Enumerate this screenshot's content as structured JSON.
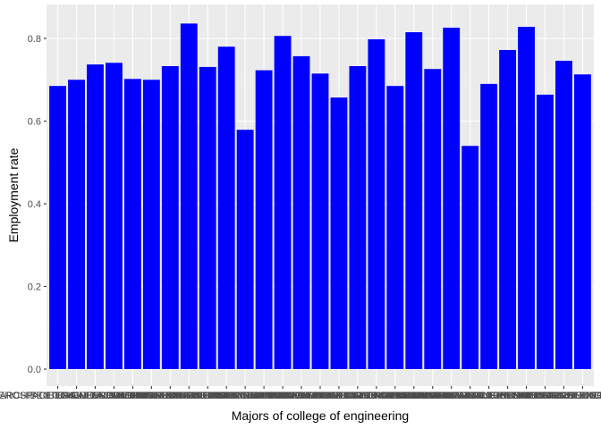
{
  "chart_data": {
    "type": "bar",
    "title": "",
    "xlabel": "Majors of college of engineering",
    "ylabel": "Employment rate",
    "ylim": [
      0,
      0.85
    ],
    "yticks": [
      "0.0",
      "0.2",
      "0.4",
      "0.6",
      "0.8"
    ],
    "ytick_values": [
      0.0,
      0.2,
      0.4,
      0.6,
      0.8
    ],
    "grid": true,
    "legend": "none",
    "bar_color": "#0000ff",
    "panel_color": "#ebebeb",
    "categories": [
      "AEROSPACE ENGINEERING",
      "ARCHITECTURAL ENGINEERING",
      "BIOLOGICAL ENGINEERING",
      "BIOMEDICAL ENGINEERING",
      "CHEMICAL ENGINEERING",
      "CIVIL ENGINEERING",
      "COMPUTER ENGINEERING",
      "ELECTRICAL ENGINEERING",
      "ELECTRICAL ENGINEERING TECHNOLOGY",
      "ENGINEERING AND INDUSTRIAL MANAGEMENT",
      "ENGINEERING MECHANICS PHYSICS AND SCIENCE",
      "ENGINEERING TECHNOLOGIES",
      "ENVIRONMENTAL ENGINEERING",
      "GENERAL ENGINEERING",
      "GEOLOGICAL AND GEOPHYSICAL ENGINEERING",
      "INDUSTRIAL AND MANUFACTURING ENGINEERING",
      "INDUSTRIAL PRODUCTION TECHNOLOGIES",
      "MATERIALS ENGINEERING AND MATERIALS SCIENCE",
      "MATERIALS SCIENCE",
      "MECHANICAL ENGINEERING",
      "MECHANICAL ENGINEERING RELATED TECHNOLOGIES",
      "METALLURGICAL ENGINEERING",
      "MINING AND MINERAL ENGINEERING",
      "MISCELLANEOUS ENGINEERING",
      "MISCELLANEOUS ENGINEERING TECHNOLOGIES",
      "NAVAL ARCHITECTURE AND MARINE ENGINEERING",
      "NUCLEAR ENGINEERING",
      "PETROLEUM ENGINEERING",
      "ROBOTICS ENGINEERING"
    ],
    "values": [
      0.685,
      0.7,
      0.737,
      0.741,
      0.702,
      0.7,
      0.733,
      0.836,
      0.731,
      0.78,
      0.579,
      0.723,
      0.806,
      0.757,
      0.715,
      0.657,
      0.733,
      0.798,
      0.685,
      0.815,
      0.726,
      0.826,
      0.54,
      0.69,
      0.772,
      0.828,
      0.664,
      0.746,
      0.713
    ]
  }
}
